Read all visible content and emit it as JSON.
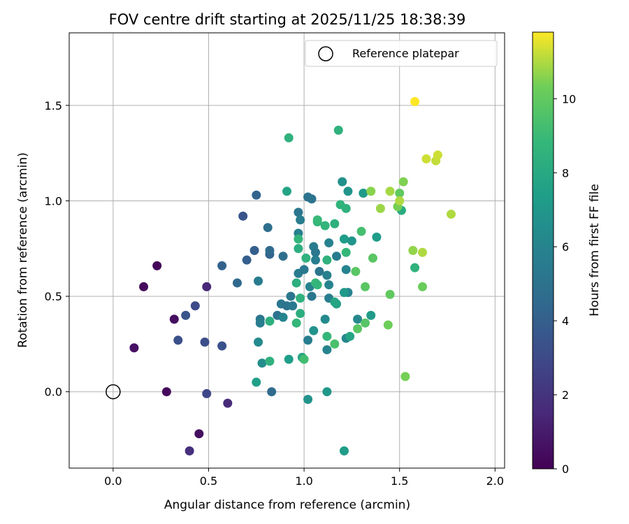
{
  "chart_data": {
    "type": "scatter",
    "title": "FOV centre drift starting at 2025/11/25 18:38:39",
    "xlabel": "Angular distance from reference (arcmin)",
    "ylabel": "Rotation from reference (arcmin)",
    "xlim": [
      -0.23,
      2.05
    ],
    "ylim": [
      -0.4,
      1.88
    ],
    "xticks": [
      0.0,
      0.5,
      1.0,
      1.5,
      2.0
    ],
    "xtick_labels": [
      "0.0",
      "0.5",
      "1.0",
      "1.5",
      "2.0"
    ],
    "yticks": [
      0.0,
      0.5,
      1.0,
      1.5
    ],
    "ytick_labels": [
      "0.0",
      "0.5",
      "1.0",
      "1.5"
    ],
    "grid": true,
    "legend": {
      "position": "top-right",
      "entries": [
        {
          "label": "Reference platepar",
          "marker": "open-circle"
        }
      ]
    },
    "reference_point": {
      "x": 0.0,
      "y": 0.0
    },
    "colorbar": {
      "label": "Hours from first FF file",
      "range": [
        0,
        11.8
      ],
      "ticks": [
        0,
        2,
        4,
        6,
        8,
        10
      ],
      "tick_labels": [
        "0",
        "2",
        "4",
        "6",
        "8",
        "10"
      ],
      "colormap": "viridis"
    },
    "points": [
      {
        "x": 0.23,
        "y": 0.66,
        "hours": 0.2
      },
      {
        "x": 0.16,
        "y": 0.55,
        "hours": 0.4
      },
      {
        "x": 0.11,
        "y": 0.23,
        "hours": 0.6
      },
      {
        "x": 0.32,
        "y": 0.38,
        "hours": 0.5
      },
      {
        "x": 0.28,
        "y": 0.0,
        "hours": 0.3
      },
      {
        "x": 0.45,
        "y": -0.22,
        "hours": 0.5
      },
      {
        "x": 0.4,
        "y": -0.31,
        "hours": 1.8
      },
      {
        "x": 0.6,
        "y": -0.06,
        "hours": 1.6
      },
      {
        "x": 0.49,
        "y": 0.55,
        "hours": 1.5
      },
      {
        "x": 0.49,
        "y": -0.01,
        "hours": 2.8
      },
      {
        "x": 0.34,
        "y": 0.27,
        "hours": 3.3
      },
      {
        "x": 0.38,
        "y": 0.4,
        "hours": 3.5
      },
      {
        "x": 0.43,
        "y": 0.45,
        "hours": 3.0
      },
      {
        "x": 0.48,
        "y": 0.26,
        "hours": 3.2
      },
      {
        "x": 0.57,
        "y": 0.24,
        "hours": 3.4
      },
      {
        "x": 0.57,
        "y": 0.66,
        "hours": 4.2
      },
      {
        "x": 0.68,
        "y": 0.92,
        "hours": 3.5
      },
      {
        "x": 0.7,
        "y": 0.69,
        "hours": 4.0
      },
      {
        "x": 0.65,
        "y": 0.57,
        "hours": 4.5
      },
      {
        "x": 0.75,
        "y": 1.03,
        "hours": 4.3
      },
      {
        "x": 0.74,
        "y": 0.74,
        "hours": 4.0
      },
      {
        "x": 0.81,
        "y": 0.86,
        "hours": 4.8
      },
      {
        "x": 0.82,
        "y": 0.72,
        "hours": 4.2
      },
      {
        "x": 0.82,
        "y": 0.74,
        "hours": 4.6
      },
      {
        "x": 0.89,
        "y": 0.71,
        "hours": 4.8
      },
      {
        "x": 0.76,
        "y": 0.58,
        "hours": 5.5
      },
      {
        "x": 0.77,
        "y": 0.38,
        "hours": 5.2
      },
      {
        "x": 0.77,
        "y": 0.36,
        "hours": 5.6
      },
      {
        "x": 0.83,
        "y": 0.0,
        "hours": 4.6
      },
      {
        "x": 0.86,
        "y": 0.4,
        "hours": 5.0
      },
      {
        "x": 0.88,
        "y": 0.46,
        "hours": 5.3
      },
      {
        "x": 0.91,
        "y": 0.45,
        "hours": 5.0
      },
      {
        "x": 0.93,
        "y": 0.5,
        "hours": 5.2
      },
      {
        "x": 0.94,
        "y": 0.45,
        "hours": 5.4
      },
      {
        "x": 0.89,
        "y": 0.39,
        "hours": 6.0
      },
      {
        "x": 0.76,
        "y": 0.26,
        "hours": 6.3
      },
      {
        "x": 0.78,
        "y": 0.15,
        "hours": 6.5
      },
      {
        "x": 0.97,
        "y": 0.94,
        "hours": 5.2
      },
      {
        "x": 0.98,
        "y": 0.9,
        "hours": 5.6
      },
      {
        "x": 0.97,
        "y": 0.83,
        "hours": 5.8
      },
      {
        "x": 0.97,
        "y": 0.62,
        "hours": 5.5
      },
      {
        "x": 1.0,
        "y": 0.64,
        "hours": 5.4
      },
      {
        "x": 1.02,
        "y": 1.02,
        "hours": 5.0
      },
      {
        "x": 1.04,
        "y": 1.01,
        "hours": 5.1
      },
      {
        "x": 1.05,
        "y": 0.76,
        "hours": 5.5
      },
      {
        "x": 1.06,
        "y": 0.73,
        "hours": 5.3
      },
      {
        "x": 1.06,
        "y": 0.69,
        "hours": 5.7
      },
      {
        "x": 1.08,
        "y": 0.63,
        "hours": 5.2
      },
      {
        "x": 1.04,
        "y": 0.5,
        "hours": 5.3
      },
      {
        "x": 1.02,
        "y": 0.27,
        "hours": 5.6
      },
      {
        "x": 1.12,
        "y": 0.22,
        "hours": 6.0
      },
      {
        "x": 1.11,
        "y": 0.38,
        "hours": 6.3
      },
      {
        "x": 1.05,
        "y": 0.32,
        "hours": 6.8
      },
      {
        "x": 1.03,
        "y": 0.55,
        "hours": 6.0
      },
      {
        "x": 1.12,
        "y": 0.61,
        "hours": 5.8
      },
      {
        "x": 1.13,
        "y": 0.56,
        "hours": 6.0
      },
      {
        "x": 1.13,
        "y": 0.49,
        "hours": 5.6
      },
      {
        "x": 1.13,
        "y": 0.78,
        "hours": 5.9
      },
      {
        "x": 1.17,
        "y": 0.71,
        "hours": 5.5
      },
      {
        "x": 1.22,
        "y": 0.64,
        "hours": 6.0
      },
      {
        "x": 1.23,
        "y": 0.52,
        "hours": 6.0
      },
      {
        "x": 1.22,
        "y": 0.28,
        "hours": 6.1
      },
      {
        "x": 1.28,
        "y": 0.38,
        "hours": 6.2
      },
      {
        "x": 1.2,
        "y": 1.1,
        "hours": 6.7
      },
      {
        "x": 1.23,
        "y": 1.05,
        "hours": 6.9
      },
      {
        "x": 1.31,
        "y": 1.04,
        "hours": 7.2
      },
      {
        "x": 1.21,
        "y": 0.8,
        "hours": 7.3
      },
      {
        "x": 1.25,
        "y": 0.79,
        "hours": 6.9
      },
      {
        "x": 1.38,
        "y": 0.81,
        "hours": 7.3
      },
      {
        "x": 1.35,
        "y": 0.4,
        "hours": 7.2
      },
      {
        "x": 1.21,
        "y": 0.52,
        "hours": 7.1
      },
      {
        "x": 1.12,
        "y": 0.0,
        "hours": 7.0
      },
      {
        "x": 1.02,
        "y": -0.04,
        "hours": 6.8
      },
      {
        "x": 1.21,
        "y": -0.31,
        "hours": 7.3
      },
      {
        "x": 0.75,
        "y": 0.05,
        "hours": 7.5
      },
      {
        "x": 0.92,
        "y": 0.17,
        "hours": 7.4
      },
      {
        "x": 0.99,
        "y": 0.18,
        "hours": 7.8
      },
      {
        "x": 1.17,
        "y": 0.46,
        "hours": 7.6
      },
      {
        "x": 1.16,
        "y": 0.47,
        "hours": 7.8
      },
      {
        "x": 1.24,
        "y": 0.29,
        "hours": 7.8
      },
      {
        "x": 1.51,
        "y": 0.95,
        "hours": 8.2
      },
      {
        "x": 1.58,
        "y": 0.65,
        "hours": 8.5
      },
      {
        "x": 0.91,
        "y": 1.05,
        "hours": 7.7
      },
      {
        "x": 0.97,
        "y": 0.75,
        "hours": 8.3
      },
      {
        "x": 0.92,
        "y": 1.33,
        "hours": 8.5
      },
      {
        "x": 1.18,
        "y": 1.37,
        "hours": 8.5
      },
      {
        "x": 1.19,
        "y": 0.98,
        "hours": 8.6
      },
      {
        "x": 1.22,
        "y": 0.96,
        "hours": 8.5
      },
      {
        "x": 1.07,
        "y": 0.89,
        "hours": 8.7
      },
      {
        "x": 1.07,
        "y": 0.9,
        "hours": 8.9
      },
      {
        "x": 1.11,
        "y": 0.87,
        "hours": 8.7
      },
      {
        "x": 1.16,
        "y": 0.88,
        "hours": 8.4
      },
      {
        "x": 0.97,
        "y": 0.8,
        "hours": 8.7
      },
      {
        "x": 1.01,
        "y": 0.7,
        "hours": 8.5
      },
      {
        "x": 0.96,
        "y": 0.57,
        "hours": 8.3
      },
      {
        "x": 0.98,
        "y": 0.49,
        "hours": 8.5
      },
      {
        "x": 0.98,
        "y": 0.41,
        "hours": 8.3
      },
      {
        "x": 0.82,
        "y": 0.37,
        "hours": 8.4
      },
      {
        "x": 0.82,
        "y": 0.16,
        "hours": 8.5
      },
      {
        "x": 0.96,
        "y": 0.36,
        "hours": 8.8
      },
      {
        "x": 1.06,
        "y": 0.57,
        "hours": 8.9
      },
      {
        "x": 1.07,
        "y": 0.56,
        "hours": 8.7
      },
      {
        "x": 1.12,
        "y": 0.69,
        "hours": 8.5
      },
      {
        "x": 1.22,
        "y": 0.73,
        "hours": 8.8
      },
      {
        "x": 1.12,
        "y": 0.29,
        "hours": 8.8
      },
      {
        "x": 1.16,
        "y": 0.25,
        "hours": 9.4
      },
      {
        "x": 1.0,
        "y": 0.17,
        "hours": 9.2
      },
      {
        "x": 1.3,
        "y": 0.84,
        "hours": 9.3
      },
      {
        "x": 1.27,
        "y": 0.63,
        "hours": 9.8
      },
      {
        "x": 1.36,
        "y": 0.7,
        "hours": 9.8
      },
      {
        "x": 1.28,
        "y": 0.33,
        "hours": 9.8
      },
      {
        "x": 1.32,
        "y": 0.36,
        "hours": 9.7
      },
      {
        "x": 1.32,
        "y": 0.55,
        "hours": 9.8
      },
      {
        "x": 1.44,
        "y": 0.35,
        "hours": 10.3
      },
      {
        "x": 1.45,
        "y": 0.51,
        "hours": 10.0
      },
      {
        "x": 1.5,
        "y": 1.04,
        "hours": 10.0
      },
      {
        "x": 1.49,
        "y": 0.97,
        "hours": 10.4
      },
      {
        "x": 1.52,
        "y": 1.1,
        "hours": 10.5
      },
      {
        "x": 1.53,
        "y": 0.08,
        "hours": 10.4
      },
      {
        "x": 1.57,
        "y": 0.74,
        "hours": 10.7
      },
      {
        "x": 1.62,
        "y": 0.55,
        "hours": 10.2
      },
      {
        "x": 1.35,
        "y": 1.05,
        "hours": 10.6
      },
      {
        "x": 1.4,
        "y": 0.96,
        "hours": 10.8
      },
      {
        "x": 1.45,
        "y": 1.05,
        "hours": 10.9
      },
      {
        "x": 1.5,
        "y": 1.0,
        "hours": 11.0
      },
      {
        "x": 1.62,
        "y": 0.73,
        "hours": 11.0
      },
      {
        "x": 1.64,
        "y": 1.22,
        "hours": 11.3
      },
      {
        "x": 1.69,
        "y": 1.21,
        "hours": 11.2
      },
      {
        "x": 1.7,
        "y": 1.24,
        "hours": 11.3
      },
      {
        "x": 1.77,
        "y": 0.93,
        "hours": 11.0
      },
      {
        "x": 1.58,
        "y": 1.52,
        "hours": 11.8
      }
    ]
  }
}
